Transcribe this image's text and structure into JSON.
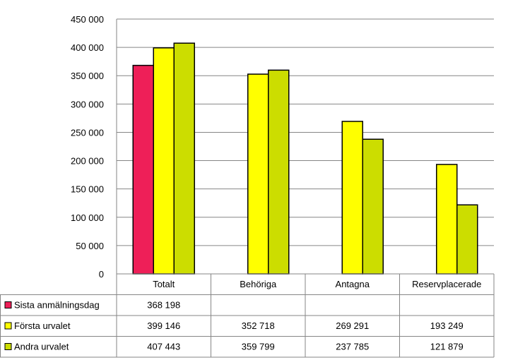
{
  "chart_data": {
    "type": "bar",
    "title": "",
    "xlabel": "",
    "ylabel": "",
    "ylim": [
      0,
      450000
    ],
    "y_ticks": [
      "0",
      "50 000",
      "100 000",
      "150 000",
      "200 000",
      "250 000",
      "300 000",
      "350 000",
      "400 000",
      "450 000"
    ],
    "grid": "horizontal",
    "legend": "data-table",
    "categories": [
      "Totalt",
      "Behöriga",
      "Antagna",
      "Reservplacerade"
    ],
    "series": [
      {
        "name": "Sista anmälningsdag",
        "color": "#ee1f58",
        "values": [
          368198,
          null,
          null,
          null
        ],
        "labels": [
          "368 198",
          "",
          "",
          ""
        ]
      },
      {
        "name": "Första urvalet",
        "color": "#ffff00",
        "values": [
          399146,
          352718,
          269291,
          193249
        ],
        "labels": [
          "399 146",
          "352 718",
          "269 291",
          "193 249"
        ]
      },
      {
        "name": "Andra urvalet",
        "color": "#ccdd00",
        "values": [
          407443,
          359799,
          237785,
          121879
        ],
        "labels": [
          "407 443",
          "359 799",
          "237 785",
          "121 879"
        ]
      }
    ]
  }
}
